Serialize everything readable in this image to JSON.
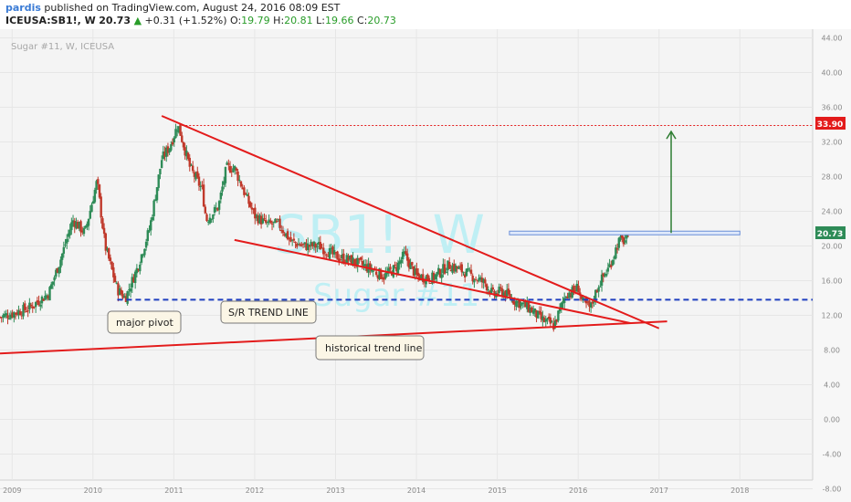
{
  "header": {
    "author": "pardis",
    "published_text": "published on TradingView.com, August 24, 2016 08:09 EST",
    "symbol": "ICEUSA:SB1!, W",
    "last": "20.73",
    "change": "+0.31 (+1.52%)",
    "open_label": "O:",
    "open": "19.79",
    "high_label": "H:",
    "high": "20.81",
    "low_label": "L:",
    "low": "19.66",
    "close_label": "C:",
    "close": "20.73"
  },
  "chart_title": "Sugar #11, W, ICEUSA",
  "watermark": {
    "symbol": "SB1!, W",
    "name": "Sugar #11"
  },
  "annotations": {
    "major_pivot": "major pivot",
    "sr_trend_line": "S/R TREND LINE",
    "historical_trend_line": "historical trend line"
  },
  "price_labels": {
    "target": "33.90",
    "last": "20.73"
  },
  "colors": {
    "up": "#2e8b57",
    "down": "#c0392b",
    "trend": "#e31b1b",
    "support": "#1f3fbf",
    "target_line": "#e31b1b",
    "arrow": "#2e7d32",
    "resistance_box": "#6a8fd8",
    "background": "#f4f4f4"
  },
  "chart_data": {
    "type": "candlestick",
    "title": "Sugar #11, W, ICEUSA",
    "x_unit": "year",
    "y_unit": "USD cents/lb",
    "xlim": [
      2008.85,
      2018.9
    ],
    "ylim": [
      -7,
      45
    ],
    "y_ticks": [
      44,
      40,
      36,
      32,
      28,
      24,
      20,
      16,
      12,
      8,
      4,
      0,
      -4,
      -8
    ],
    "x_ticks": [
      2009,
      2010,
      2011,
      2012,
      2013,
      2014,
      2015,
      2016,
      2017,
      2018
    ],
    "grid": true,
    "price_path": [
      [
        2008.85,
        11.8
      ],
      [
        2009.2,
        12.8
      ],
      [
        2009.45,
        14.5
      ],
      [
        2009.6,
        18.5
      ],
      [
        2009.75,
        23.0
      ],
      [
        2009.9,
        21.5
      ],
      [
        2010.05,
        27.5
      ],
      [
        2010.15,
        20.0
      ],
      [
        2010.3,
        15.0
      ],
      [
        2010.4,
        14.0
      ],
      [
        2010.55,
        17.5
      ],
      [
        2010.7,
        22.0
      ],
      [
        2010.85,
        30.0
      ],
      [
        2010.95,
        31.5
      ],
      [
        2011.05,
        34.0
      ],
      [
        2011.2,
        29.0
      ],
      [
        2011.35,
        26.5
      ],
      [
        2011.4,
        23.0
      ],
      [
        2011.55,
        24.5
      ],
      [
        2011.65,
        29.0
      ],
      [
        2011.75,
        29.0
      ],
      [
        2011.9,
        25.5
      ],
      [
        2012.0,
        23.5
      ],
      [
        2012.15,
        22.5
      ],
      [
        2012.3,
        22.5
      ],
      [
        2012.45,
        20.5
      ],
      [
        2012.6,
        20.0
      ],
      [
        2012.8,
        20.0
      ],
      [
        2013.0,
        18.8
      ],
      [
        2013.2,
        18.3
      ],
      [
        2013.4,
        17.5
      ],
      [
        2013.6,
        16.5
      ],
      [
        2013.75,
        17.5
      ],
      [
        2013.85,
        19.0
      ],
      [
        2014.0,
        16.5
      ],
      [
        2014.2,
        16.3
      ],
      [
        2014.4,
        17.8
      ],
      [
        2014.6,
        17.0
      ],
      [
        2014.75,
        16.2
      ],
      [
        2014.85,
        15.7
      ],
      [
        2014.95,
        14.3
      ],
      [
        2015.05,
        14.8
      ],
      [
        2015.2,
        13.8
      ],
      [
        2015.4,
        12.8
      ],
      [
        2015.55,
        11.5
      ],
      [
        2015.7,
        10.8
      ],
      [
        2015.85,
        14.5
      ],
      [
        2015.95,
        14.8
      ],
      [
        2016.0,
        15.3
      ],
      [
        2016.05,
        13.5
      ],
      [
        2016.15,
        12.8
      ],
      [
        2016.25,
        15.5
      ],
      [
        2016.38,
        17.5
      ],
      [
        2016.5,
        20.5
      ],
      [
        2016.62,
        20.73
      ]
    ],
    "series": [
      {
        "name": "S/R TREND LINE",
        "type": "hline",
        "y": 13.8,
        "x": [
          2010.3,
          2018.9
        ],
        "style": "dashed"
      },
      {
        "name": "historical trend line",
        "type": "line",
        "x": [
          2008.85,
          2017.1
        ],
        "y": [
          7.6,
          11.3
        ]
      },
      {
        "type": "line",
        "x": [
          2010.85,
          2017.0
        ],
        "y": [
          35.0,
          10.5
        ]
      },
      {
        "type": "line",
        "x": [
          2011.75,
          2016.65
        ],
        "y": [
          20.7,
          11.1
        ]
      },
      {
        "type": "hline",
        "y": 33.9,
        "x": [
          2011.1,
          2018.9
        ],
        "style": "dotted"
      },
      {
        "type": "hline",
        "y": 21.5,
        "x": [
          2015.15,
          2018.0
        ],
        "style": "box"
      },
      {
        "type": "arrow",
        "x": 2017.15,
        "y": [
          21.5,
          33.2
        ]
      }
    ],
    "annotations": [
      {
        "text": "major pivot",
        "x": 2010.35,
        "y": 10.5
      },
      {
        "text": "S/R TREND LINE",
        "x": 2012.1,
        "y": 12.0
      },
      {
        "text": "historical trend line",
        "x": 2013.2,
        "y": 7.6
      }
    ],
    "price_labels": [
      33.9,
      20.73
    ]
  }
}
